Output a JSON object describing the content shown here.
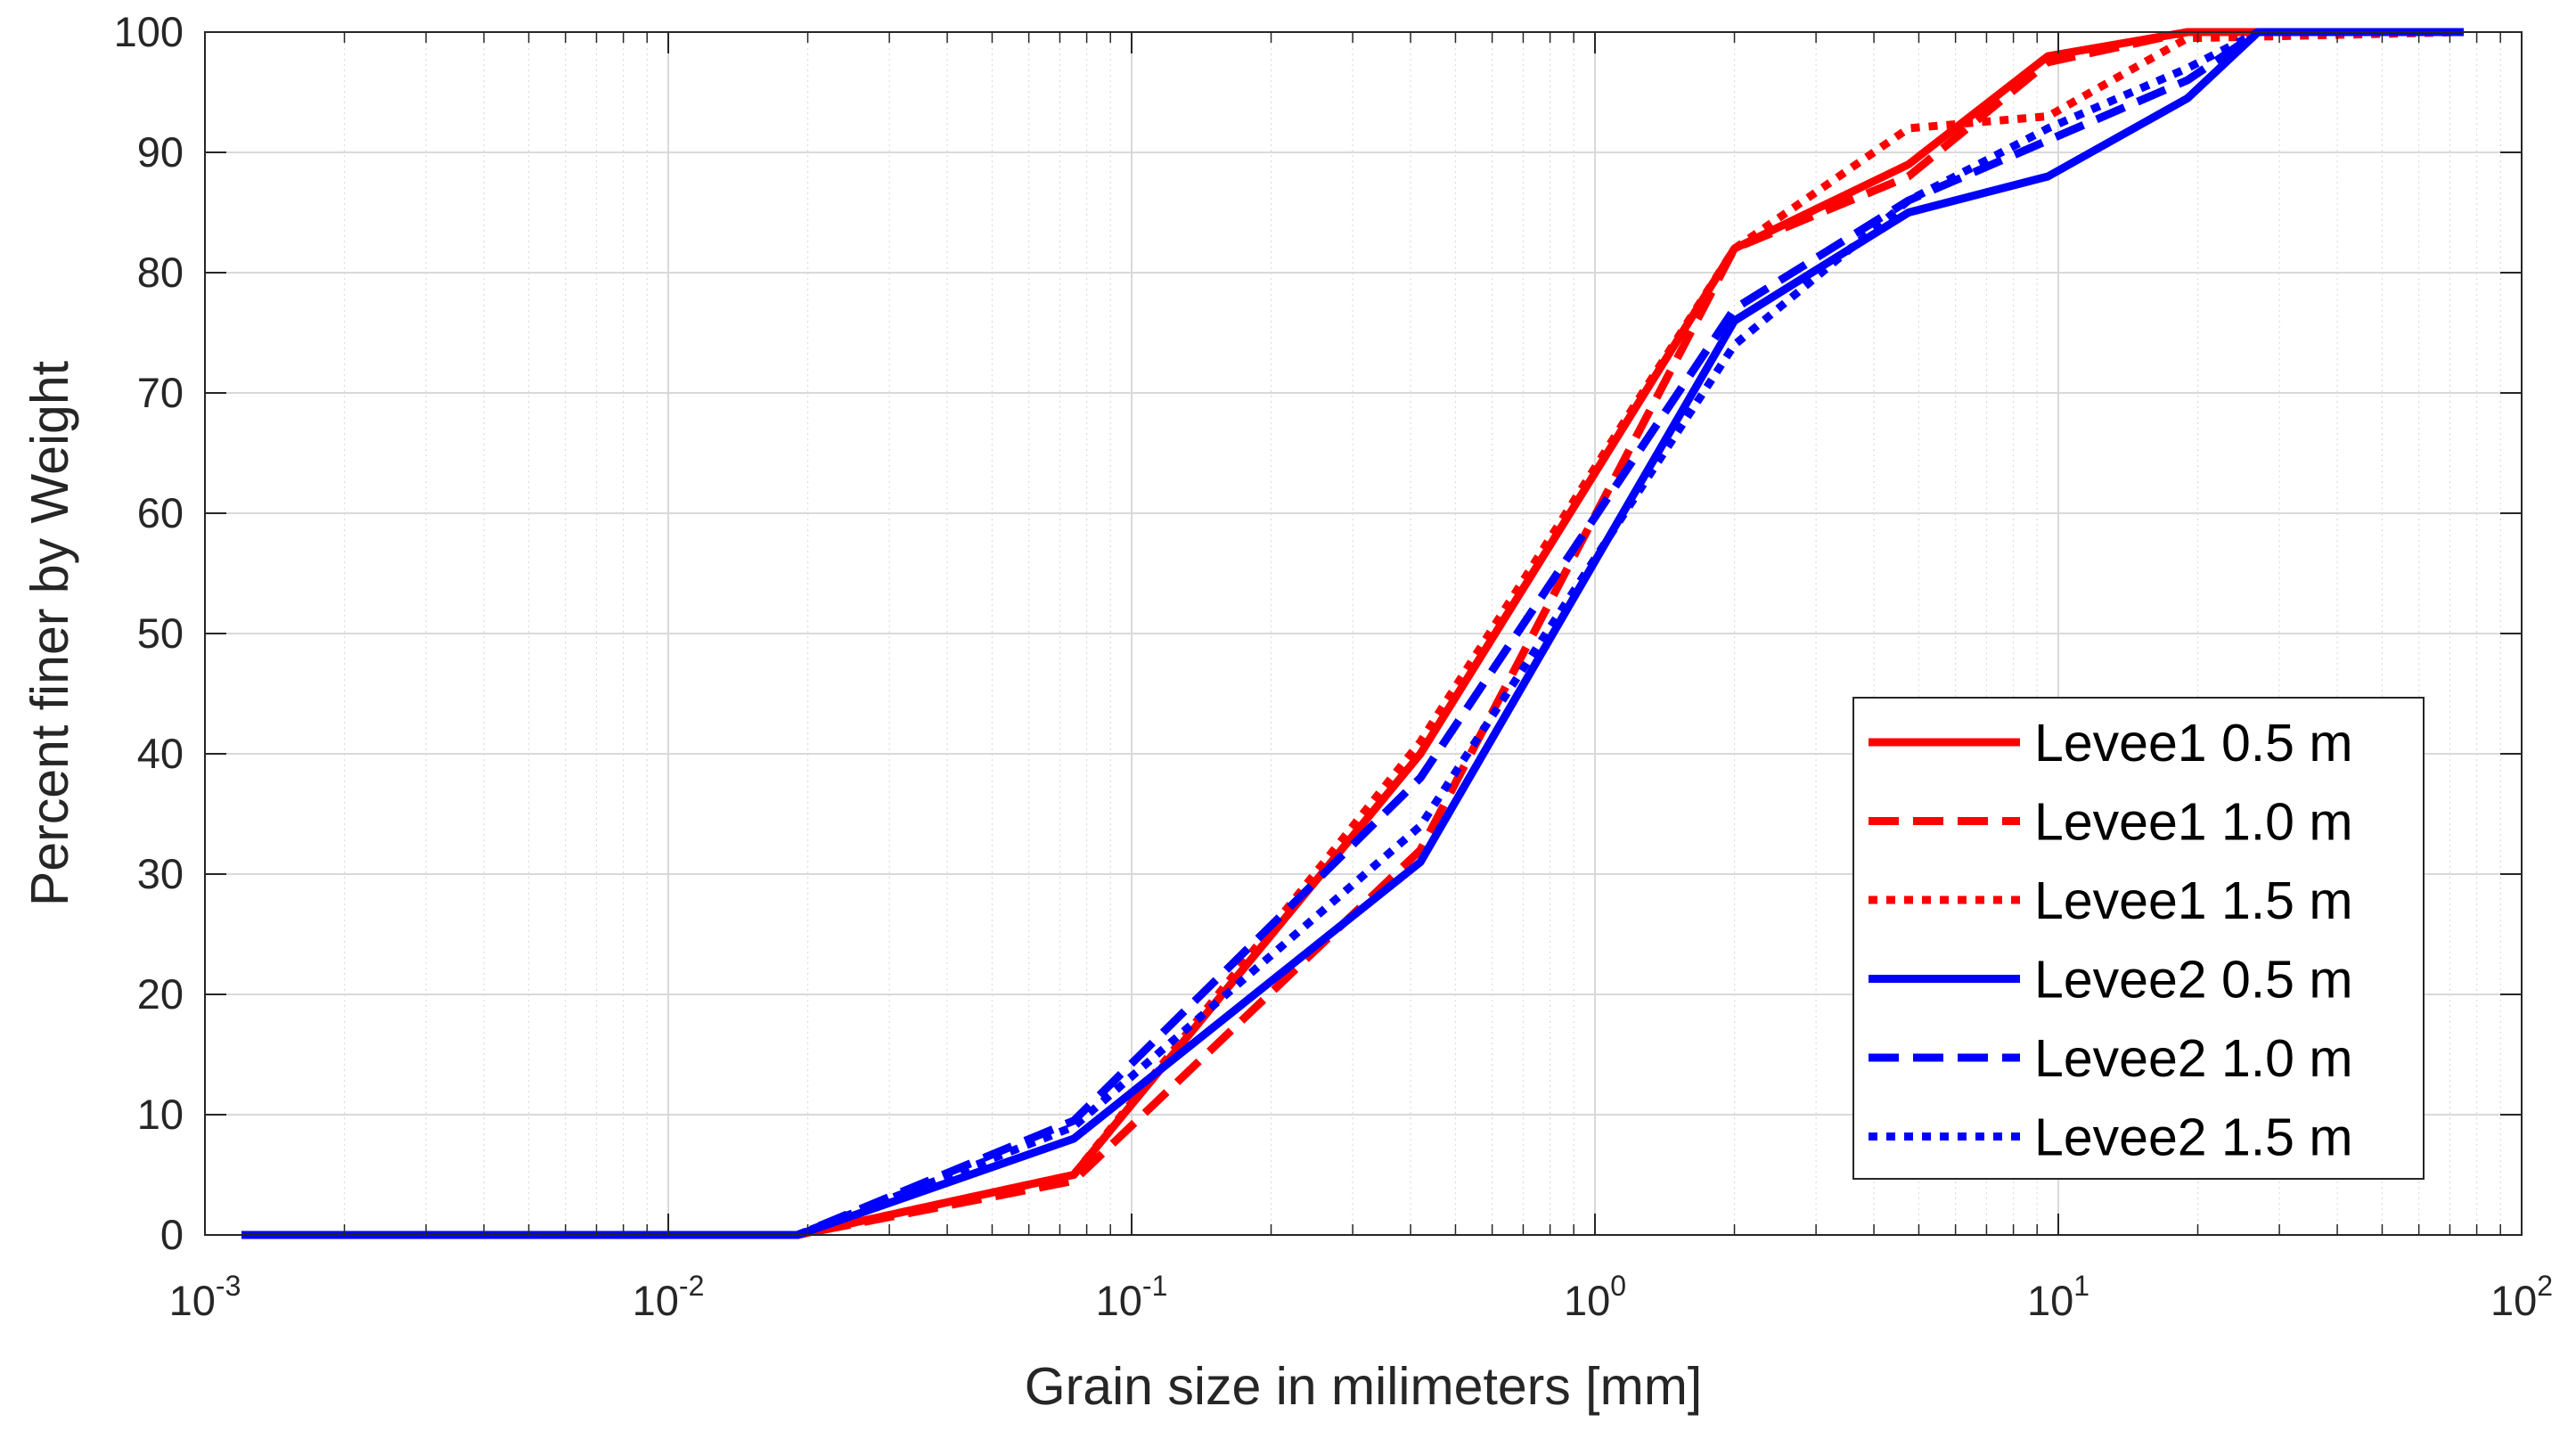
{
  "chart_data": {
    "type": "line",
    "title": "",
    "xlabel": "Grain size in milimeters [mm]",
    "ylabel": "Percent finer by Weight",
    "xscale": "log",
    "xlim": [
      0.001,
      100
    ],
    "ylim": [
      0,
      100
    ],
    "grid": true,
    "legend_position": "bottom-right",
    "x_ticks": [
      {
        "value": 0.001,
        "base": "10",
        "exp": "-3"
      },
      {
        "value": 0.01,
        "base": "10",
        "exp": "-2"
      },
      {
        "value": 0.1,
        "base": "10",
        "exp": "-1"
      },
      {
        "value": 1,
        "base": "10",
        "exp": "0"
      },
      {
        "value": 10,
        "base": "10",
        "exp": "1"
      },
      {
        "value": 100,
        "base": "10",
        "exp": "2"
      }
    ],
    "y_ticks": [
      "0",
      "10",
      "20",
      "30",
      "40",
      "50",
      "60",
      "70",
      "80",
      "90",
      "100"
    ],
    "series": [
      {
        "name": "Levee1 0.5 m",
        "color": "#ff0000",
        "style": "solid",
        "x": [
          0.0012,
          0.019,
          0.075,
          0.42,
          2.0,
          4.75,
          9.5,
          19,
          75
        ],
        "y": [
          0,
          0,
          5,
          40,
          82,
          89,
          98,
          100,
          100
        ]
      },
      {
        "name": "Levee1 1.0 m",
        "color": "#ff0000",
        "style": "dashed",
        "x": [
          0.0012,
          0.019,
          0.075,
          0.42,
          2.0,
          4.75,
          9.5,
          19,
          75
        ],
        "y": [
          0,
          0,
          4.5,
          32,
          82,
          88,
          97.5,
          100,
          100
        ]
      },
      {
        "name": "Levee1 1.5 m",
        "color": "#ff0000",
        "style": "dotted",
        "x": [
          0.0012,
          0.019,
          0.075,
          0.42,
          2.0,
          4.75,
          9.5,
          19,
          75
        ],
        "y": [
          0,
          0,
          5,
          41,
          82,
          92,
          93,
          99.5,
          100
        ]
      },
      {
        "name": "Levee2 0.5 m",
        "color": "#0000ff",
        "style": "solid",
        "x": [
          0.0012,
          0.019,
          0.075,
          0.42,
          2.0,
          4.75,
          9.5,
          19,
          27,
          75
        ],
        "y": [
          0,
          0,
          8,
          31,
          76,
          85,
          88,
          94.5,
          100,
          100
        ]
      },
      {
        "name": "Levee2 1.0 m",
        "color": "#0000ff",
        "style": "dashed",
        "x": [
          0.0012,
          0.019,
          0.075,
          0.42,
          2.0,
          4.75,
          9.5,
          19,
          27,
          75
        ],
        "y": [
          0,
          0,
          9.5,
          38,
          77,
          86,
          91,
          96,
          100,
          100
        ]
      },
      {
        "name": "Levee2 1.5 m",
        "color": "#0000ff",
        "style": "dotted",
        "x": [
          0.0012,
          0.019,
          0.075,
          0.42,
          2.0,
          4.75,
          9.5,
          19,
          27,
          75
        ],
        "y": [
          0,
          0,
          9,
          34,
          74,
          86,
          92,
          97,
          100,
          100
        ]
      }
    ]
  }
}
